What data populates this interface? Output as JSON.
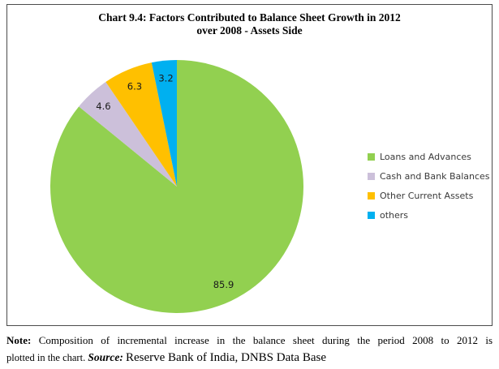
{
  "title": {
    "line1": "Chart 9.4: Factors Contributed to Balance Sheet Growth in 2012",
    "line2": "over 2008 - Assets Side"
  },
  "chart_data": {
    "type": "pie",
    "title": "Chart 9.4: Factors Contributed to Balance Sheet Growth in 2012 over 2008 - Assets Side",
    "categories": [
      "Loans and Advances",
      "Cash and Bank Balances",
      "Other Current Assets",
      "others"
    ],
    "values": [
      85.9,
      4.6,
      6.3,
      3.2
    ],
    "data_labels": [
      "85.9",
      "4.6",
      "6.3",
      "3.2"
    ],
    "colors": [
      "#92D050",
      "#CCC0DA",
      "#FFC000",
      "#00B0F0"
    ],
    "start_angle_deg": 0,
    "direction": "clockwise",
    "legend_position": "right",
    "label_color": "#1a1a1a"
  },
  "note": {
    "label": "Note:",
    "line1_rest": "Composition of incremental increase in the balance sheet during the period 2008 to 2012 is",
    "line2_start": "plotted in the chart.",
    "source_label": "Source:",
    "source_value": "Reserve Bank of India, DNBS Data Base"
  }
}
